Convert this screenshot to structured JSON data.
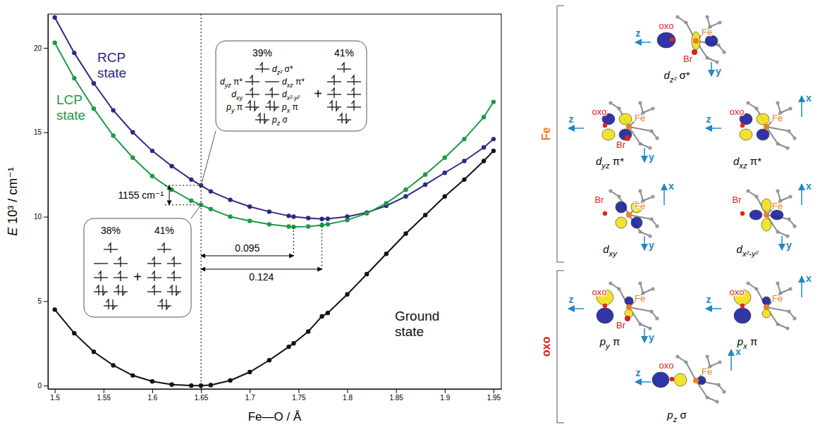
{
  "chart_data": {
    "type": "line",
    "x_label": "Fe—O / Å",
    "y_label": "E 10³ / cm⁻¹",
    "xlim": [
      1.493,
      1.958
    ],
    "xticks": [
      1.5,
      1.55,
      1.6,
      1.65,
      1.7,
      1.75,
      1.8,
      1.85,
      1.9,
      1.95
    ],
    "ylim": [
      -0.2,
      22
    ],
    "yticks": [
      0,
      5,
      10,
      15,
      20
    ],
    "x": [
      1.5,
      1.52,
      1.54,
      1.56,
      1.58,
      1.6,
      1.62,
      1.64,
      1.65,
      1.66,
      1.68,
      1.7,
      1.72,
      1.74,
      1.745,
      1.76,
      1.774,
      1.78,
      1.8,
      1.82,
      1.84,
      1.86,
      1.88,
      1.9,
      1.92,
      1.94,
      1.95
    ],
    "series": [
      {
        "name": "RCP state",
        "color": "#2c2a84",
        "marker": "circle",
        "line_style": "solid",
        "values": [
          21.8,
          19.7,
          17.9,
          16.3,
          15.0,
          13.9,
          13.0,
          12.2,
          11.855,
          11.5,
          11.0,
          10.6,
          10.3,
          10.05,
          10.0,
          9.92,
          9.87,
          9.88,
          10.0,
          10.25,
          10.65,
          11.2,
          11.9,
          12.6,
          13.3,
          14.1,
          14.6
        ]
      },
      {
        "name": "LCP state",
        "color": "#1e9a46",
        "marker": "circle",
        "line_style": "solid",
        "values": [
          20.3,
          18.2,
          16.4,
          14.8,
          13.5,
          12.4,
          11.6,
          10.95,
          10.7,
          10.45,
          10.0,
          9.75,
          9.55,
          9.42,
          9.4,
          9.42,
          9.5,
          9.55,
          9.8,
          10.2,
          10.8,
          11.6,
          12.5,
          13.5,
          14.6,
          15.9,
          16.8
        ]
      },
      {
        "name": "Ground state",
        "color": "#111111",
        "marker": "circle",
        "line_style": "solid",
        "values": [
          4.5,
          3.1,
          2.0,
          1.2,
          0.6,
          0.25,
          0.06,
          0.0,
          0.0,
          0.03,
          0.3,
          0.8,
          1.5,
          2.3,
          2.5,
          3.2,
          4.1,
          4.3,
          5.4,
          6.6,
          7.8,
          9.0,
          10.1,
          11.2,
          12.2,
          13.3,
          13.9
        ]
      }
    ],
    "energy_gap": {
      "label": "1155 cm⁻¹",
      "x": 1.65,
      "y_from": 10.7,
      "y_to": 11.855
    },
    "distances": [
      {
        "label": "0.095",
        "x_from": 1.65,
        "x_to": 1.745
      },
      {
        "label": "0.124",
        "x_from": 1.65,
        "x_to": 1.774
      }
    ],
    "insets": [
      {
        "state": "RCP state",
        "x": 1.65,
        "plus": "+",
        "levels": [
          {
            "base": "d",
            "sub": "z²",
            "rest": " σ*"
          },
          {
            "base": "d",
            "sub": "yz",
            "rest": " π*"
          },
          {
            "base": "d",
            "sub": "xz",
            "rest": " π*"
          },
          {
            "base": "d",
            "sub": "xy"
          },
          {
            "base": "d",
            "sub": "x²-y²"
          },
          {
            "base": "p",
            "sub": "y",
            "rest": " π"
          },
          {
            "base": "p",
            "sub": "x",
            "rest": " π"
          },
          {
            "base": "p",
            "sub": "z",
            "rest": " σ"
          }
        ],
        "configurations": [
          {
            "value": 39,
            "label": "39%",
            "occupations": [
              1,
              1,
              0,
              1,
              1,
              2,
              2,
              2
            ]
          },
          {
            "value": 41,
            "label": "41%",
            "occupations": [
              1,
              1,
              1,
              1,
              1,
              2,
              1,
              2
            ]
          }
        ]
      },
      {
        "state": "LCP state",
        "x": 1.65,
        "plus": "+",
        "configurations": [
          {
            "value": 38,
            "label": "38%",
            "occupations": [
              1,
              0,
              1,
              1,
              1,
              2,
              2,
              2
            ]
          },
          {
            "value": 41,
            "label": "41%",
            "occupations": [
              1,
              1,
              1,
              1,
              1,
              1,
              2,
              2
            ]
          }
        ]
      }
    ]
  },
  "orbital_panel": {
    "groups": [
      {
        "label": "Fe",
        "orbitals": [
          {
            "label": {
              "base": "d",
              "sub": "z²",
              "rest": " σ*"
            },
            "atoms": [
              "oxo",
              "Fe",
              "Br"
            ],
            "axes": [
              "z",
              "y"
            ]
          },
          {
            "label": {
              "base": "d",
              "sub": "yz",
              "rest": " π*"
            },
            "atoms": [
              "oxo",
              "Fe",
              "Br"
            ],
            "axes": [
              "z",
              "y"
            ]
          },
          {
            "label": {
              "base": "d",
              "sub": "xz",
              "rest": " π*"
            },
            "atoms": [
              "oxo",
              "Fe"
            ],
            "axes": [
              "z",
              "x"
            ]
          },
          {
            "label": {
              "base": "d",
              "sub": "xy"
            },
            "atoms": [
              "Br",
              "Fe"
            ],
            "axes": [
              "y",
              "x"
            ]
          },
          {
            "label": {
              "base": "d",
              "sub": "x²-y²"
            },
            "atoms": [
              "Br",
              "Fe"
            ],
            "axes": [
              "y",
              "x"
            ]
          }
        ]
      },
      {
        "label": "oxo",
        "orbitals": [
          {
            "label": {
              "base": "p",
              "sub": "y",
              "rest": " π"
            },
            "atoms": [
              "oxo",
              "Fe",
              "Br"
            ],
            "axes": [
              "z",
              "y"
            ]
          },
          {
            "label": {
              "base": "p",
              "sub": "x",
              "rest": " π"
            },
            "atoms": [
              "oxo",
              "Fe"
            ],
            "axes": [
              "z",
              "x"
            ]
          },
          {
            "label": {
              "base": "p",
              "sub": "z",
              "rest": " σ"
            },
            "atoms": [
              "oxo",
              "Fe"
            ],
            "axes": [
              "z",
              "x"
            ]
          }
        ]
      }
    ]
  }
}
